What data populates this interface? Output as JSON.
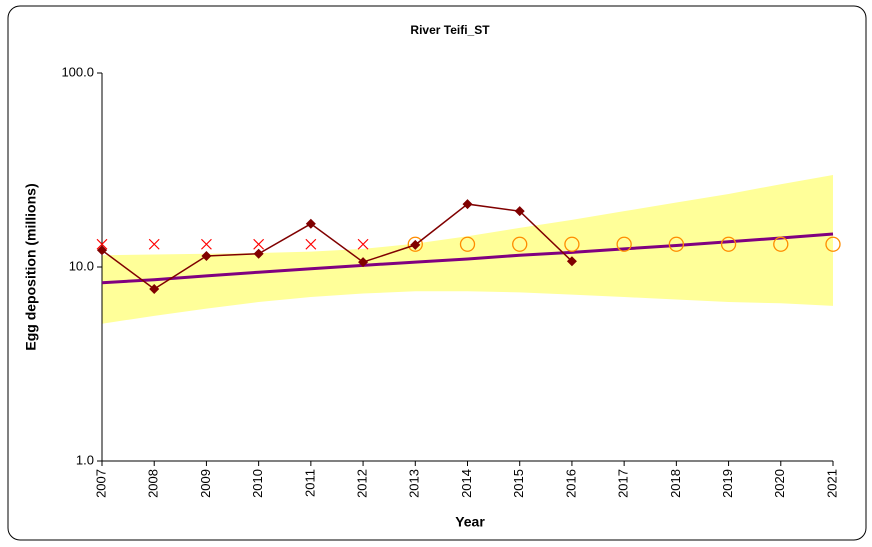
{
  "chart_data": {
    "type": "line",
    "title": "River Teifi_ST",
    "x_label": "Year",
    "y_label": "Egg deposition (millions)",
    "log_y": true,
    "x": [
      2007,
      2008,
      2009,
      2010,
      2011,
      2012,
      2013,
      2014,
      2015,
      2016,
      2017,
      2018,
      2019,
      2020,
      2021
    ],
    "xlim": [
      2007,
      2021
    ],
    "xticks": [
      2007,
      2008,
      2009,
      2010,
      2011,
      2012,
      2013,
      2014,
      2015,
      2016,
      2017,
      2018,
      2019,
      2020,
      2021
    ],
    "ylim": [
      1,
      100
    ],
    "yticks": [
      {
        "value": 1,
        "label": "1.0"
      },
      {
        "value": 10,
        "label": "10.0"
      },
      {
        "value": 100,
        "label": "100.0"
      }
    ],
    "band": {
      "color": "#ffff99",
      "upper": [
        11.5,
        11.6,
        11.7,
        11.8,
        12.0,
        12.4,
        13.2,
        14.4,
        15.9,
        17.5,
        19.4,
        21.5,
        23.8,
        26.7,
        29.8
      ],
      "lower": [
        5.1,
        5.6,
        6.1,
        6.6,
        7.0,
        7.3,
        7.5,
        7.5,
        7.4,
        7.2,
        7.0,
        6.8,
        6.6,
        6.5,
        6.3
      ]
    },
    "series": [
      {
        "color": "#800080",
        "style": "line",
        "values": [
          8.3,
          8.6,
          9.0,
          9.4,
          9.8,
          10.2,
          10.6,
          11.0,
          11.5,
          11.9,
          12.4,
          12.9,
          13.5,
          14.1,
          14.8
        ]
      },
      {
        "color": "#ff0000",
        "style": "x",
        "values": [
          13.1,
          13.1,
          13.1,
          13.1,
          13.1,
          13.1,
          null,
          null,
          null,
          null,
          null,
          null,
          null,
          null,
          null
        ]
      },
      {
        "color": "#ff8c00",
        "style": "circle",
        "values": [
          null,
          null,
          null,
          null,
          null,
          null,
          13.1,
          13.1,
          13.1,
          13.1,
          13.1,
          13.1,
          13.1,
          13.1,
          13.1
        ]
      },
      {
        "color": "#800000",
        "style": "diamond-line",
        "values": [
          12.2,
          7.7,
          11.4,
          11.7,
          16.7,
          10.6,
          13.0,
          21.1,
          19.4,
          10.7,
          null,
          null,
          null,
          null,
          null
        ]
      }
    ]
  }
}
